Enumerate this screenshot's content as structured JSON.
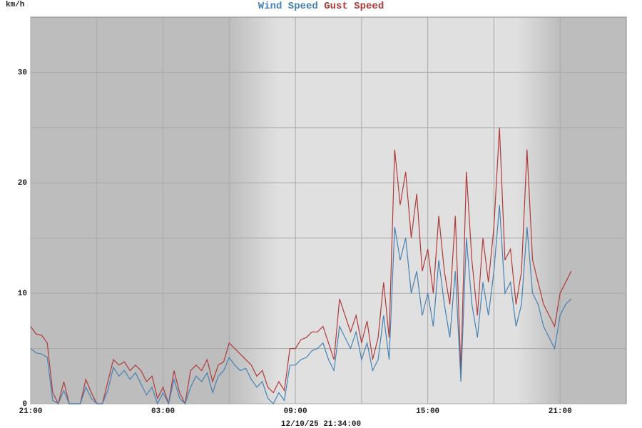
{
  "chart_data": {
    "type": "line",
    "y_label": "km/h",
    "x_label": "12/10/25 21:34:00",
    "xlim": [
      0,
      27
    ],
    "xticks": [
      {
        "value": 0,
        "label": "21:00"
      },
      {
        "value": 6,
        "label": "03:00"
      },
      {
        "value": 12,
        "label": "09:00"
      },
      {
        "value": 18,
        "label": "15:00"
      },
      {
        "value": 24,
        "label": "21:00"
      }
    ],
    "minor_xticks": [
      3,
      9,
      15,
      21
    ],
    "ylim": [
      0,
      35
    ],
    "yticks": [
      0,
      10,
      20,
      30
    ],
    "minor_yticks": [
      5,
      15,
      25
    ],
    "grid": true,
    "x": [
      0,
      0.25,
      0.5,
      0.75,
      1,
      1.25,
      1.5,
      1.75,
      2,
      2.25,
      2.5,
      2.75,
      3,
      3.25,
      3.5,
      3.75,
      4,
      4.25,
      4.5,
      4.75,
      5,
      5.25,
      5.5,
      5.75,
      6,
      6.25,
      6.5,
      6.75,
      7,
      7.25,
      7.5,
      7.75,
      8,
      8.25,
      8.5,
      8.75,
      9,
      9.25,
      9.5,
      9.75,
      10,
      10.25,
      10.5,
      10.75,
      11,
      11.25,
      11.5,
      11.75,
      12,
      12.25,
      12.5,
      12.75,
      13,
      13.25,
      13.5,
      13.75,
      14,
      14.25,
      14.5,
      14.75,
      15,
      15.25,
      15.5,
      15.75,
      16,
      16.25,
      16.5,
      16.75,
      17,
      17.25,
      17.5,
      17.75,
      18,
      18.25,
      18.5,
      18.75,
      19,
      19.25,
      19.5,
      19.75,
      20,
      20.25,
      20.5,
      20.75,
      21,
      21.25,
      21.5,
      21.75,
      22,
      22.25,
      22.5,
      22.75,
      23,
      23.25,
      23.5,
      23.75,
      24,
      24.25,
      24.5
    ],
    "series": [
      {
        "name": "Wind Speed",
        "color": "#4682b4",
        "values": [
          5,
          4.6,
          4.5,
          4.2,
          0.3,
          0,
          1.2,
          0,
          0,
          0,
          1.5,
          0.5,
          0,
          0,
          1.2,
          3.3,
          2.5,
          3,
          2.2,
          2.8,
          1.8,
          0.8,
          1.5,
          0,
          1,
          0,
          2.2,
          0.5,
          0,
          1.5,
          2.5,
          2,
          2.8,
          1,
          2.5,
          3,
          4.2,
          3.5,
          3,
          3.2,
          2.2,
          1.5,
          2,
          0.5,
          0,
          1,
          0.3,
          3.5,
          3.5,
          4,
          4.2,
          4.8,
          5,
          5.5,
          4,
          3,
          7,
          6,
          5,
          6.5,
          4,
          5.5,
          3,
          4,
          8,
          4,
          16,
          13,
          15,
          10,
          12,
          8,
          10,
          7,
          13,
          9,
          6,
          12,
          2,
          15,
          9,
          6,
          11,
          8,
          12,
          18,
          10,
          11,
          7,
          9,
          16,
          10,
          9,
          7,
          6,
          5,
          8,
          9,
          9.5
        ]
      },
      {
        "name": "Gust Speed",
        "color": "#b03a3a",
        "values": [
          7,
          6.3,
          6.2,
          5.5,
          1,
          0,
          2,
          0,
          0,
          0,
          2.2,
          1,
          0,
          0,
          2,
          4,
          3.5,
          3.8,
          3,
          3.5,
          3,
          2,
          2.5,
          0.5,
          1.5,
          0,
          3,
          1,
          0,
          3,
          3.5,
          3,
          4,
          2,
          3.5,
          3.8,
          5.5,
          5,
          4.5,
          4,
          3.5,
          2.5,
          3,
          1.5,
          1,
          2,
          1.2,
          5,
          5,
          5.8,
          6,
          6.5,
          6.5,
          7,
          5.5,
          4,
          9.5,
          8,
          6.5,
          8,
          5.5,
          7.5,
          4,
          6,
          11,
          6,
          23,
          18,
          21,
          15,
          19,
          12,
          14,
          10,
          17,
          12,
          9,
          17,
          3,
          21,
          13,
          8,
          15,
          11,
          16,
          25,
          13,
          14,
          9,
          12,
          23,
          13,
          11,
          9,
          8,
          7,
          10,
          11,
          12
        ]
      }
    ]
  }
}
